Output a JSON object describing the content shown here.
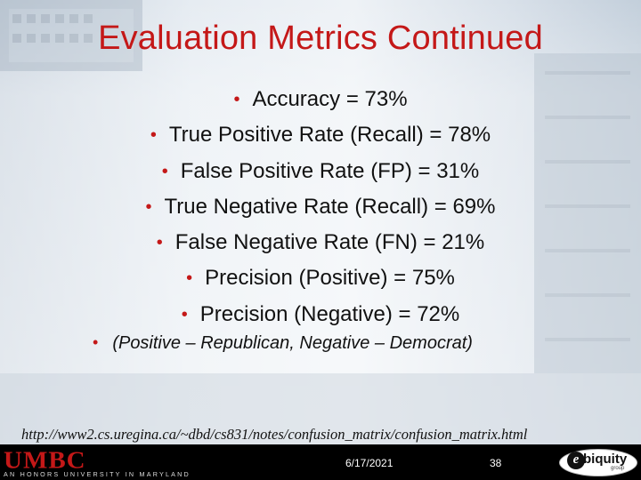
{
  "slide": {
    "title": "Evaluation Metrics Continued",
    "bullets": [
      "Accuracy = 73%",
      "True Positive Rate (Recall) = 78%",
      "False Positive Rate (FP) = 31%",
      "True Negative Rate (Recall) = 69%",
      "False Negative Rate (FN) = 21%",
      "Precision (Positive) = 75%",
      "Precision (Negative) = 72%"
    ],
    "note": "(Positive – Republican, Negative – Democrat)",
    "url": "http://www2.cs.uregina.ca/~dbd/cs831/notes/confusion_matrix/confusion_matrix.html",
    "bullet_glyph": "•"
  },
  "footer": {
    "logo_text": "UMBC",
    "tagline": "AN HONORS UNIVERSITY IN MARYLAND",
    "date": "6/17/2021",
    "page_number": "38",
    "partner_logo": {
      "mark": "e",
      "word": "biquity",
      "subword": "group"
    }
  },
  "colors": {
    "accent": "#c41818",
    "footer_bg": "#000000",
    "text": "#111111"
  }
}
